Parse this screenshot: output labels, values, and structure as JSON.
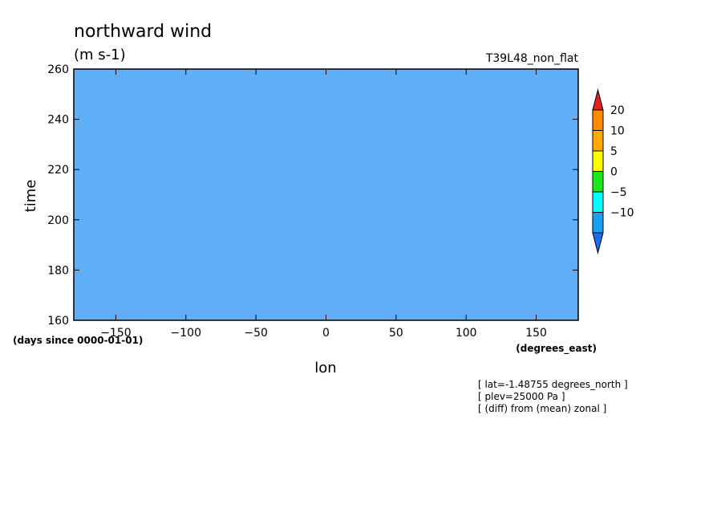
{
  "chart_data": {
    "type": "heatmap",
    "title": "northward wind",
    "units": "(m s-1)",
    "experiment": "T39L48_non_flat",
    "xlabel": "lon",
    "xunits": "(degrees_east)",
    "ylabel": "time",
    "yunits": "(days since 0000-01-01)",
    "xlim": [
      -180,
      180
    ],
    "ylim": [
      160,
      260
    ],
    "xticks": [
      -150,
      -100,
      -50,
      0,
      50,
      100,
      150
    ],
    "yticks": [
      160,
      180,
      200,
      220,
      240,
      260
    ],
    "colorbar": {
      "levels": [
        -10,
        -5,
        0,
        5,
        10,
        20
      ],
      "colors": [
        "#1e6cf0",
        "#1ea0f0",
        "#00ffff",
        "#1ee61e",
        "#ffff00",
        "#ffaa00",
        "#ff8c00",
        "#e61e1e"
      ],
      "extend": "both"
    },
    "annotations": [
      "[ lat=-1.48755 degrees_north ]",
      "[ plev=25000 Pa ]",
      "[ (diff) from (mean) zonal ]"
    ]
  }
}
